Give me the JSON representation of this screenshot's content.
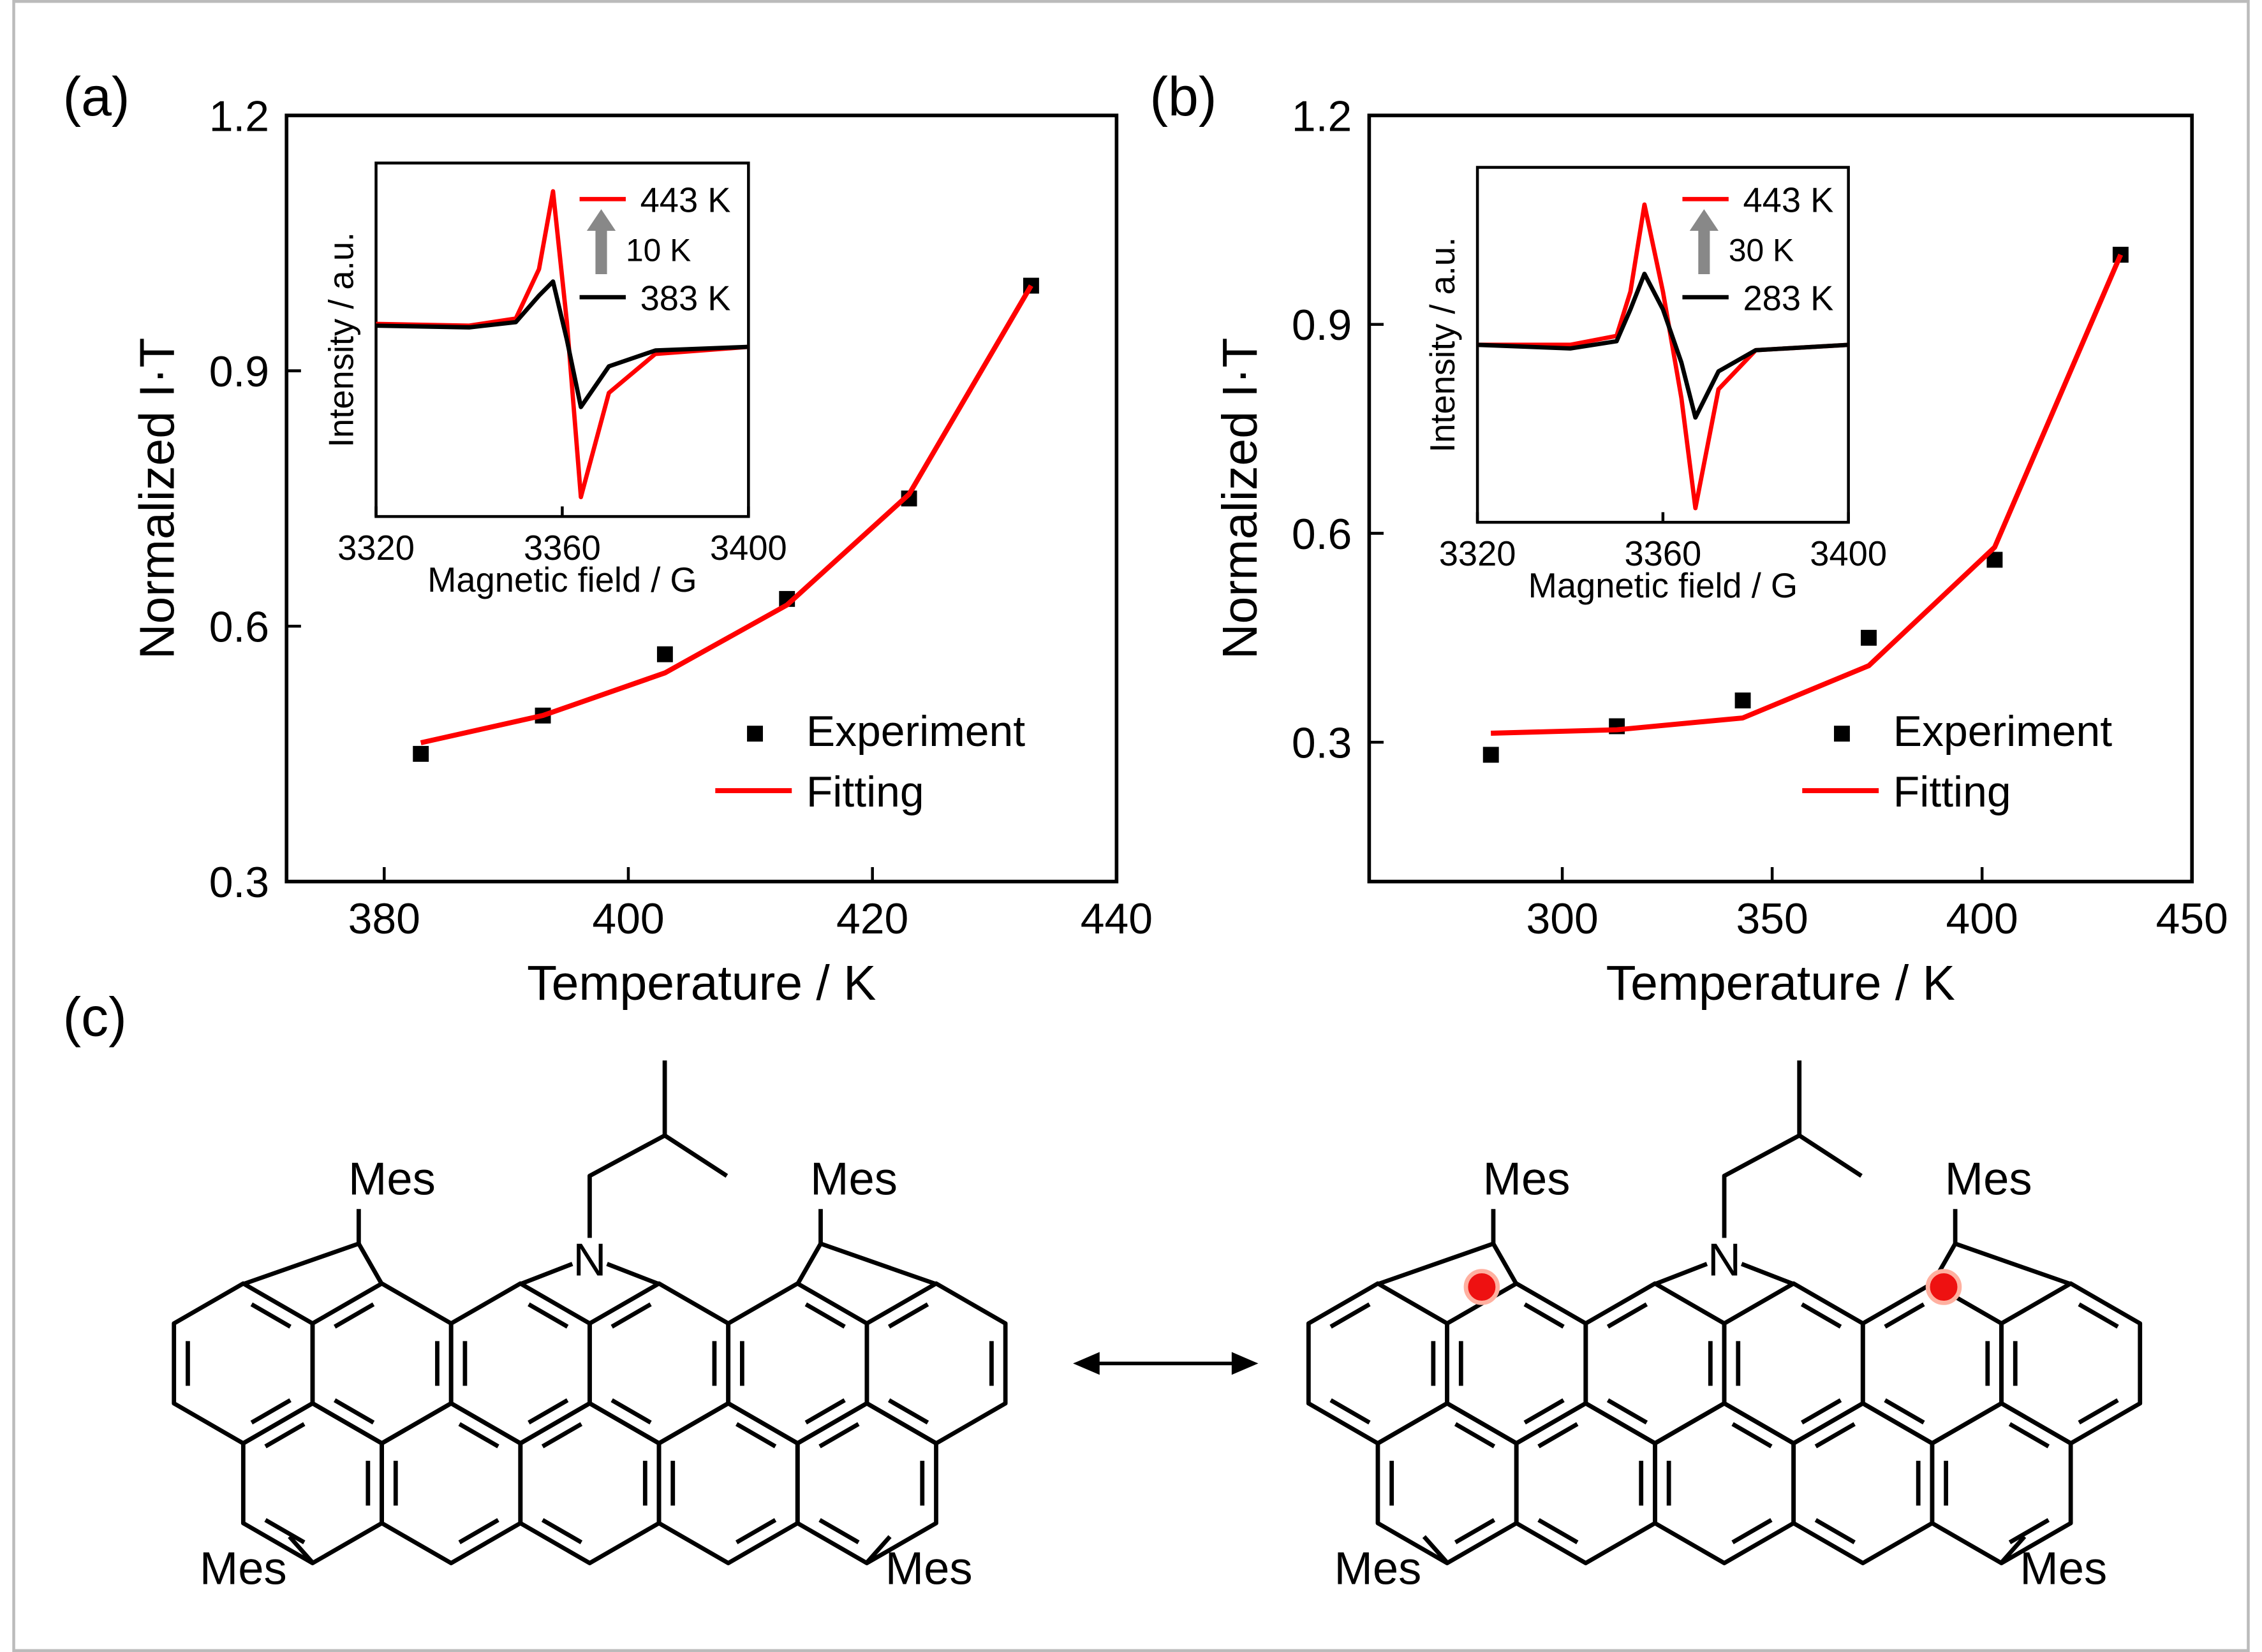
{
  "chart_data": [
    {
      "type": "combo",
      "panel_label": "(a)",
      "x_label": "Temperature / K",
      "y_label": "Normalized I·T",
      "xlim": [
        372,
        440
      ],
      "xticks": [
        380,
        400,
        420,
        440
      ],
      "ylim": [
        0.3,
        1.2
      ],
      "yticks": [
        0.3,
        0.6,
        0.9,
        1.2
      ],
      "legend": "lower right",
      "series": [
        {
          "name": "Experiment",
          "type": "scatter",
          "color": "#000000",
          "x": [
            383,
            393,
            403,
            413,
            423,
            433
          ],
          "values": [
            0.45,
            0.495,
            0.567,
            0.632,
            0.75,
            1.0
          ]
        },
        {
          "name": "Fitting",
          "type": "line",
          "color": "#ff0000",
          "x": [
            383,
            393,
            403,
            413,
            423,
            433
          ],
          "values": [
            0.463,
            0.495,
            0.545,
            0.625,
            0.755,
            1.0
          ]
        }
      ],
      "inset": {
        "type": "line",
        "x_label": "Magnetic field / G",
        "y_label": "Intensity / a.u.",
        "annotation": "10 K",
        "xlim": [
          3320,
          3400
        ],
        "xticks": [
          3320,
          3360,
          3400
        ],
        "ylim": [
          -1,
          1
        ],
        "series": [
          {
            "name": "443 K",
            "color": "#ff0000",
            "x": [
              3320,
              3340,
              3350,
              3355,
              3358,
              3361,
              3364,
              3370,
              3380,
              3400
            ],
            "values": [
              0.09,
              0.08,
              0.12,
              0.4,
              0.84,
              0.1,
              -0.89,
              -0.3,
              -0.08,
              -0.04
            ]
          },
          {
            "name": "383 K",
            "color": "#000000",
            "x": [
              3320,
              3340,
              3350,
              3355,
              3358,
              3361,
              3364,
              3370,
              3380,
              3400
            ],
            "values": [
              0.08,
              0.07,
              0.1,
              0.25,
              0.33,
              0.0,
              -0.38,
              -0.15,
              -0.06,
              -0.04
            ]
          }
        ]
      }
    },
    {
      "type": "combo",
      "panel_label": "(b)",
      "x_label": "Temperature / K",
      "y_label": "Normalized I·T",
      "xlim": [
        254,
        450
      ],
      "xticks": [
        300,
        350,
        400,
        450
      ],
      "ylim": [
        0.1,
        1.2
      ],
      "yticks": [
        0.3,
        0.6,
        0.9,
        1.2
      ],
      "legend": "lower right",
      "series": [
        {
          "name": "Experiment",
          "type": "scatter",
          "color": "#000000",
          "x": [
            283,
            313,
            343,
            373,
            403,
            433
          ],
          "values": [
            0.282,
            0.323,
            0.36,
            0.45,
            0.562,
            1.0
          ]
        },
        {
          "name": "Fitting",
          "type": "line",
          "color": "#ff0000",
          "x": [
            283,
            313,
            343,
            373,
            403,
            433
          ],
          "values": [
            0.313,
            0.318,
            0.335,
            0.41,
            0.58,
            1.0
          ]
        }
      ],
      "inset": {
        "type": "line",
        "x_label": "Magnetic field / G",
        "y_label": "Intensity / a.u.",
        "annotation": "30 K",
        "xlim": [
          3320,
          3400
        ],
        "xticks": [
          3320,
          3360,
          3400
        ],
        "ylim": [
          -1,
          1
        ],
        "series": [
          {
            "name": "443 K",
            "color": "#ff0000",
            "x": [
              3320,
              3340,
              3350,
              3353,
              3356,
              3360,
              3364,
              3367,
              3372,
              3380,
              3400
            ],
            "values": [
              0,
              0,
              0.05,
              0.3,
              0.79,
              0.3,
              -0.3,
              -0.92,
              -0.25,
              -0.03,
              0
            ]
          },
          {
            "name": "283 K",
            "color": "#000000",
            "x": [
              3320,
              3340,
              3350,
              3353,
              3356,
              3360,
              3364,
              3367,
              3372,
              3380,
              3400
            ],
            "values": [
              0,
              -0.02,
              0.02,
              0.2,
              0.4,
              0.2,
              -0.1,
              -0.41,
              -0.15,
              -0.03,
              0
            ]
          }
        ]
      }
    }
  ],
  "structure": {
    "panel_label": "(c)",
    "left": {
      "heteroatom": "N",
      "substituents": [
        "Mes",
        "Mes",
        "Mes",
        "Mes"
      ]
    },
    "right": {
      "heteroatom": "N",
      "substituents": [
        "Mes",
        "Mes",
        "Mes",
        "Mes"
      ]
    }
  }
}
